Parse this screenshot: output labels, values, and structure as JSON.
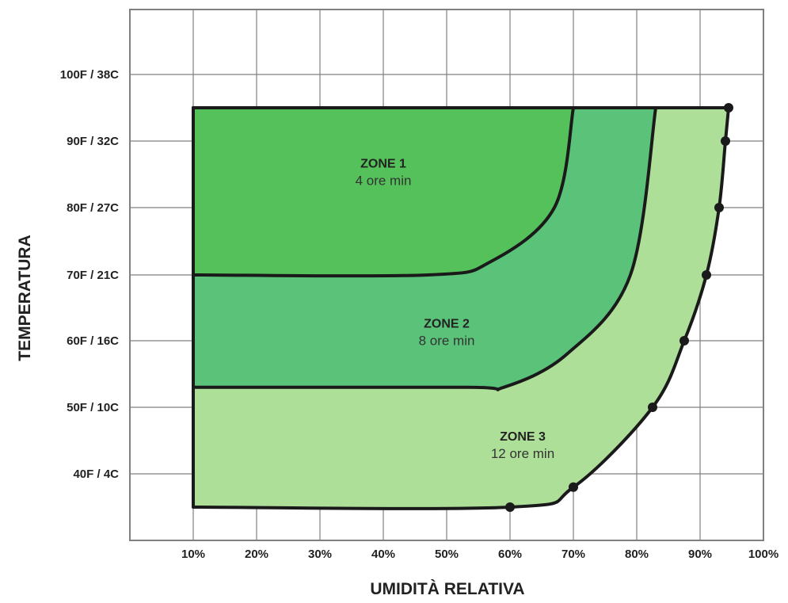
{
  "chart_data": {
    "type": "area",
    "xlabel": "UMIDITÀ RELATIVA",
    "ylabel": "TEMPERATURA",
    "x_ticks": [
      "10%",
      "20%",
      "30%",
      "40%",
      "50%",
      "60%",
      "70%",
      "80%",
      "90%",
      "100%"
    ],
    "y_ticks": [
      "40F / 4C",
      "50F / 10C",
      "60F / 16C",
      "70F / 21C",
      "80F / 27C",
      "90F / 32C",
      "100F / 38C"
    ],
    "xlim": [
      0,
      100
    ],
    "ylim": [
      30,
      110
    ],
    "grid": true,
    "colors": {
      "zone1": "#54c15a",
      "zone2": "#5bc27a",
      "zone3": "#aedf98",
      "outline": "#1a1a1a",
      "grid": "#808080"
    },
    "zones": [
      {
        "name": "ZONE 1",
        "label": "4 ore min",
        "boundary_rh": [
          [
            70,
            95
          ],
          [
            67,
            80
          ],
          [
            57,
            72
          ],
          [
            47,
            70
          ],
          [
            10,
            70
          ]
        ]
      },
      {
        "name": "ZONE 2",
        "label": "8 ore min",
        "boundary_rh": [
          [
            83,
            95
          ],
          [
            79,
            70
          ],
          [
            69,
            58
          ],
          [
            59,
            53
          ],
          [
            53,
            53
          ],
          [
            10,
            53
          ]
        ]
      },
      {
        "name": "ZONE 3",
        "label": "12 ore min",
        "boundary_rh": [
          [
            94.5,
            95
          ],
          [
            94,
            90
          ],
          [
            93,
            80
          ],
          [
            91,
            70
          ],
          [
            87.5,
            60
          ],
          [
            82.5,
            50
          ],
          [
            70,
            38
          ],
          [
            60,
            35
          ],
          [
            10,
            35
          ]
        ]
      }
    ],
    "zone3_markers": [
      {
        "rh": 94.5,
        "temp": 95
      },
      {
        "rh": 94,
        "temp": 90
      },
      {
        "rh": 93,
        "temp": 80
      },
      {
        "rh": 91,
        "temp": 70
      },
      {
        "rh": 87.5,
        "temp": 60
      },
      {
        "rh": 82.5,
        "temp": 50
      },
      {
        "rh": 70,
        "temp": 38
      },
      {
        "rh": 60,
        "temp": 35
      }
    ]
  }
}
